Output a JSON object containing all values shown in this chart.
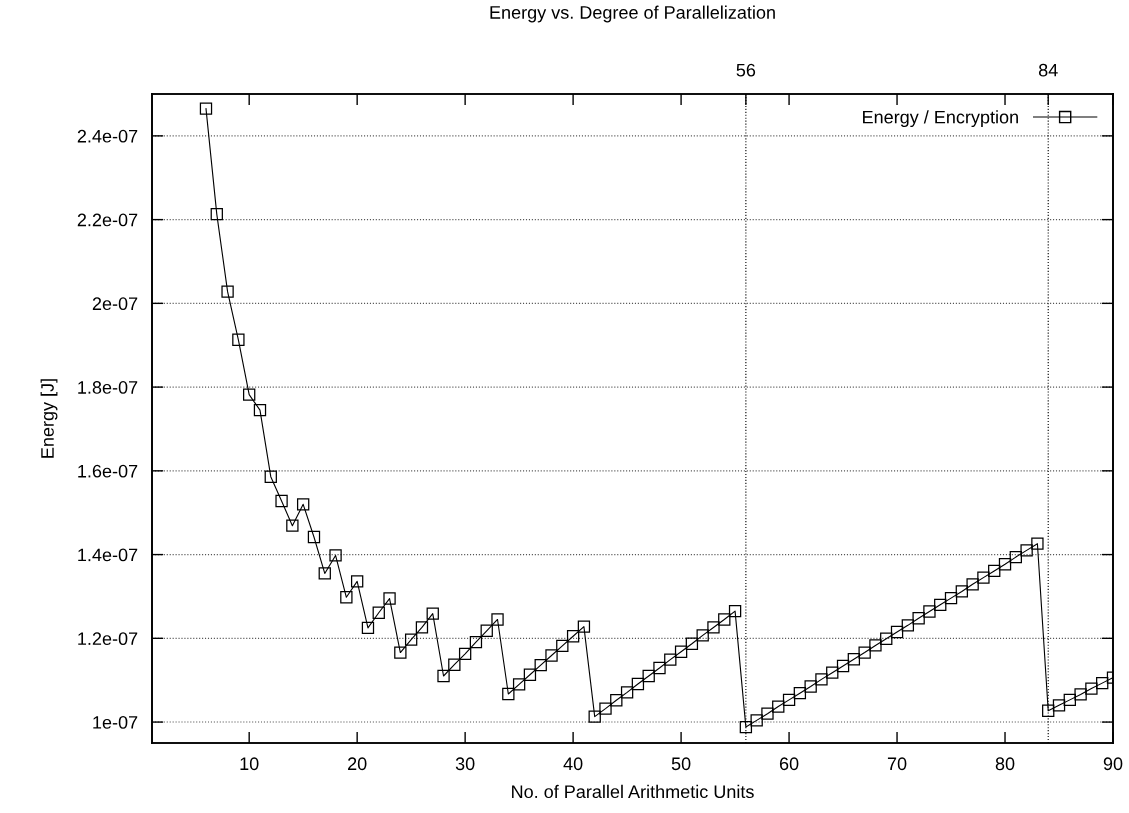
{
  "chart_data": {
    "type": "line",
    "title": "Energy vs. Degree of Parallelization",
    "xlabel": "No. of Parallel Arithmetic Units",
    "ylabel": "Energy [J]",
    "x": [
      6,
      7,
      8,
      9,
      10,
      11,
      12,
      13,
      14,
      15,
      16,
      17,
      18,
      19,
      20,
      21,
      22,
      23,
      24,
      25,
      26,
      27,
      28,
      29,
      30,
      31,
      32,
      33,
      34,
      35,
      36,
      37,
      38,
      39,
      40,
      41,
      42,
      43,
      44,
      45,
      46,
      47,
      48,
      49,
      50,
      51,
      52,
      53,
      54,
      55,
      56,
      57,
      58,
      59,
      60,
      61,
      62,
      63,
      64,
      65,
      66,
      67,
      68,
      69,
      70,
      71,
      72,
      73,
      74,
      75,
      76,
      77,
      78,
      79,
      80,
      81,
      82,
      83,
      84,
      85,
      86,
      87,
      88,
      89,
      90
    ],
    "series": [
      {
        "name": "Energy / Encryption",
        "color": "#000000",
        "values": [
          2.465e-07,
          2.213e-07,
          2.028e-07,
          1.913e-07,
          1.782e-07,
          1.745e-07,
          1.586e-07,
          1.528e-07,
          1.469e-07,
          1.52e-07,
          1.442e-07,
          1.355e-07,
          1.398e-07,
          1.298e-07,
          1.336e-07,
          1.225e-07,
          1.261e-07,
          1.295e-07,
          1.166e-07,
          1.197e-07,
          1.226e-07,
          1.259e-07,
          1.11e-07,
          1.137e-07,
          1.163e-07,
          1.191e-07,
          1.218e-07,
          1.245e-07,
          1.067e-07,
          1.09e-07,
          1.113e-07,
          1.136e-07,
          1.159e-07,
          1.182e-07,
          1.205e-07,
          1.228e-07,
          1.013e-07,
          1.032e-07,
          1.052e-07,
          1.071e-07,
          1.091e-07,
          1.11e-07,
          1.129e-07,
          1.149e-07,
          1.168e-07,
          1.187e-07,
          1.207e-07,
          1.226e-07,
          1.245e-07,
          1.265e-07,
          9.88e-08,
          1.004e-07,
          1.02e-07,
          1.037e-07,
          1.053e-07,
          1.069e-07,
          1.085e-07,
          1.102e-07,
          1.118e-07,
          1.134e-07,
          1.15e-07,
          1.166e-07,
          1.183e-07,
          1.199e-07,
          1.215e-07,
          1.231e-07,
          1.248e-07,
          1.264e-07,
          1.28e-07,
          1.296e-07,
          1.312e-07,
          1.329e-07,
          1.345e-07,
          1.361e-07,
          1.377e-07,
          1.394e-07,
          1.41e-07,
          1.426e-07,
          1.027e-07,
          1.04e-07,
          1.053e-07,
          1.066e-07,
          1.08e-07,
          1.093e-07,
          1.106e-07
        ]
      }
    ],
    "xlim": [
      1,
      90
    ],
    "xticks": [
      10,
      20,
      30,
      40,
      50,
      60,
      70,
      80,
      90
    ],
    "x2lim": [
      1,
      90
    ],
    "x2ticks": [
      {
        "value": 10,
        "label": null
      },
      {
        "value": 20,
        "label": null
      },
      {
        "value": 30,
        "label": null
      },
      {
        "value": 40,
        "label": null
      },
      {
        "value": 50,
        "label": null
      },
      56,
      {
        "value": 60,
        "label": null
      },
      {
        "value": 70,
        "label": null
      },
      {
        "value": 80,
        "label": null
      },
      84,
      {
        "value": 90,
        "label": null
      }
    ],
    "ylim": [
      9.5e-08,
      2.5e-07
    ],
    "yticks": [
      {
        "value": 1e-07,
        "label": "1e-07"
      },
      {
        "value": 1.2e-07,
        "label": "1.2e-07"
      },
      {
        "value": 1.4e-07,
        "label": "1.4e-07"
      },
      {
        "value": 1.6e-07,
        "label": "1.6e-07"
      },
      {
        "value": 1.8e-07,
        "label": "1.8e-07"
      },
      {
        "value": 2e-07,
        "label": "2e-07"
      },
      {
        "value": 2.2e-07,
        "label": "2.2e-07"
      },
      {
        "value": 2.4e-07,
        "label": "2.4e-07"
      }
    ],
    "ref_lines": [
      {
        "axis": "x",
        "value": 56,
        "color": "#000000",
        "line_style": "dotted"
      },
      {
        "axis": "x",
        "value": 84,
        "color": "#000000",
        "line_style": "dotted"
      }
    ],
    "grid": "y",
    "legend": "top right",
    "marker": "square",
    "line_style": "solid"
  }
}
